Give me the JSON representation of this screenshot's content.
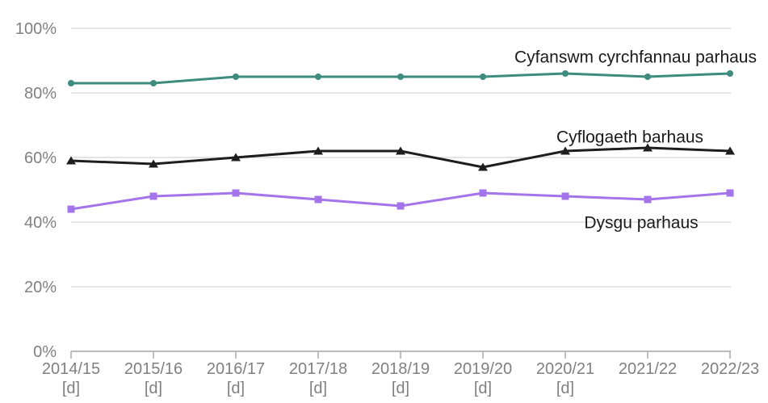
{
  "chart_data": {
    "type": "line",
    "categories": [
      "2014/15",
      "2015/16",
      "2016/17",
      "2017/18",
      "2018/19",
      "2019/20",
      "2020/21",
      "2021/22",
      "2022/23"
    ],
    "category_footnotes": [
      "[d]",
      "[d]",
      "[d]",
      "[d]",
      "[d]",
      "[d]",
      "[d]",
      "",
      ""
    ],
    "series": [
      {
        "name": "Cyfanswm cyrchfannau parhaus",
        "marker": "circle",
        "color": "#3E8C80",
        "values": [
          83,
          83,
          85,
          85,
          85,
          85,
          86,
          85,
          86
        ],
        "label_pos": {
          "x": 787,
          "y": 71
        }
      },
      {
        "name": "Cyflogaeth barhaus",
        "marker": "triangle",
        "color": "#1E1E1E",
        "values": [
          59,
          58,
          60,
          62,
          62,
          57,
          62,
          63,
          62
        ],
        "label_pos": {
          "x": 780,
          "y": 170
        }
      },
      {
        "name": "Dysgu parhaus",
        "marker": "square",
        "color": "#A474EB",
        "values": [
          44,
          48,
          49,
          47,
          45,
          49,
          48,
          47,
          49
        ],
        "label_pos": {
          "x": 794,
          "y": 276
        }
      }
    ],
    "y_axis": {
      "min": 0,
      "max": 100,
      "ticks": [
        0,
        20,
        40,
        60,
        80,
        100
      ],
      "tick_labels": [
        "0%",
        "20%",
        "40%",
        "60%",
        "80%",
        "100%"
      ]
    },
    "x_axis": {
      "tick_marks": true
    },
    "grid": true,
    "legend_position": "inline-series-labels",
    "styles": {
      "gridline_color": "#DCDCDC",
      "axis_color": "#A6A6A6",
      "axis_text_color": "#808080",
      "series_label_color": "#1A1A1A",
      "background": "#FFFFFF"
    }
  }
}
